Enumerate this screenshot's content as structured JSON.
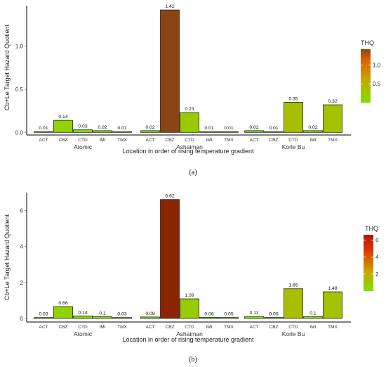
{
  "chart_data": [
    {
      "type": "bar",
      "panel_caption": "(a)",
      "xlabel": "Location in order of rising temperature gradient",
      "ylabel": "Cb+Le Target Hazard Quotient",
      "yticks": [
        0.0,
        0.5,
        1.0
      ],
      "ylim": [
        -0.03,
        1.47
      ],
      "groups": [
        "Atomic",
        "Ashaiman",
        "Korle Bu"
      ],
      "categories": [
        "ACT",
        "CBZ",
        "CTD",
        "IMI",
        "TMX"
      ],
      "series": [
        {
          "group": "Atomic",
          "values": [
            0.01,
            0.14,
            0.03,
            0.02,
            0.01
          ],
          "labels": [
            "0.01",
            "0.14",
            "0.03",
            "0.02",
            "0.01"
          ]
        },
        {
          "group": "Ashaiman",
          "values": [
            0.02,
            1.42,
            0.23,
            0.01,
            0.01
          ],
          "labels": [
            "0.02",
            "1.42",
            "0.23",
            "0.01",
            "0.01"
          ]
        },
        {
          "group": "Korle Bu",
          "values": [
            0.02,
            0.01,
            0.35,
            0.02,
            0.32
          ],
          "labels": [
            "0.02",
            "0.01",
            "0.35",
            "0.02",
            "0.32"
          ]
        }
      ],
      "legend": {
        "title": "THQ",
        "ticks": [
          0.5,
          1.0
        ],
        "tick_labels": [
          "0.5",
          "1.0"
        ],
        "range": [
          0.0,
          1.42
        ],
        "placement": "right"
      },
      "colors": {
        "low": "#7fe000",
        "mid": "#c8a400",
        "high": "#e02000",
        "top": "#8b4513"
      },
      "grid": false
    },
    {
      "type": "bar",
      "panel_caption": "(b)",
      "xlabel": "Location in order of rising temperature gradient",
      "ylabel": "Cb+Le Target Hazard Quotient",
      "yticks": [
        0,
        2,
        4,
        6
      ],
      "ylim": [
        -0.2,
        7.0
      ],
      "groups": [
        "Atomic",
        "Ashaiman",
        "Korle Bu"
      ],
      "categories": [
        "ACT",
        "CBZ",
        "CTD",
        "IMI",
        "TMX"
      ],
      "series": [
        {
          "group": "Atomic",
          "values": [
            0.03,
            0.66,
            0.14,
            0.1,
            0.03
          ],
          "labels": [
            "0.03",
            "0.66",
            "0.14",
            "0.1",
            "0.03"
          ]
        },
        {
          "group": "Ashaiman",
          "values": [
            0.08,
            6.62,
            1.09,
            0.06,
            0.05
          ],
          "labels": [
            "0.08",
            "6.62",
            "1.09",
            "0.06",
            "0.05"
          ]
        },
        {
          "group": "Korle Bu",
          "values": [
            0.11,
            0.05,
            1.65,
            0.1,
            1.48
          ],
          "labels": [
            "0.11",
            "0.05",
            "1.65",
            "0.1",
            "1.48"
          ]
        }
      ],
      "legend": {
        "title": "THQ",
        "ticks": [
          2,
          4,
          6
        ],
        "tick_labels": [
          "2",
          "4",
          "6"
        ],
        "range": [
          0.0,
          6.62
        ],
        "placement": "right"
      },
      "colors": {
        "low": "#7fe000",
        "mid": "#c8a400",
        "high": "#e02000",
        "top": "#8b2500"
      },
      "grid": false
    }
  ]
}
